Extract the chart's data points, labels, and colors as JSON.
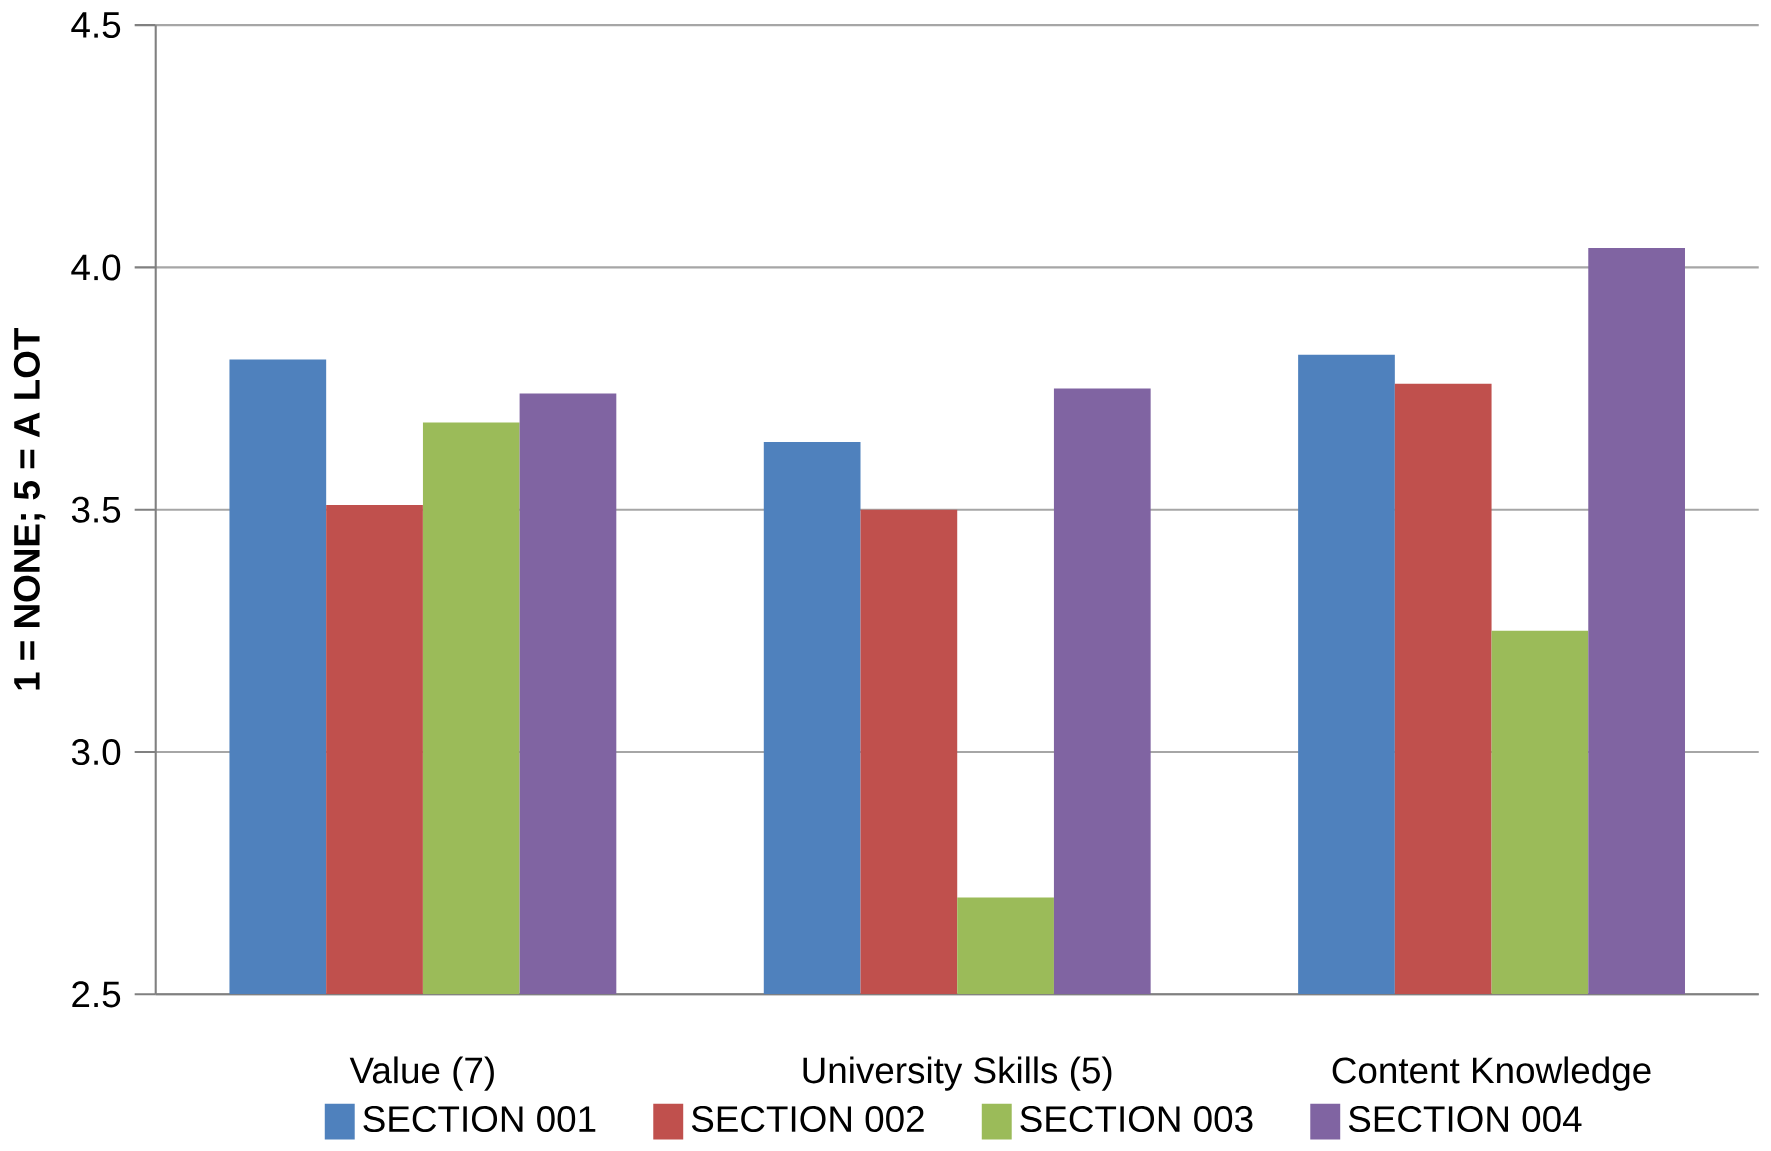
{
  "chart_data": {
    "type": "bar",
    "ylabel": "1 = NONE;  5 = A LOT",
    "categories": [
      "Value (7)",
      "University Skills (5)",
      "Content Knowledge"
    ],
    "series": [
      {
        "name": "SECTION 001",
        "color": "#4f81bd",
        "values": [
          3.81,
          3.64,
          3.82
        ]
      },
      {
        "name": "SECTION 002",
        "color": "#c0504d",
        "values": [
          3.51,
          3.5,
          3.76
        ]
      },
      {
        "name": "SECTION 003",
        "color": "#9bbb59",
        "values": [
          3.68,
          2.7,
          3.25
        ]
      },
      {
        "name": "SECTION 004",
        "color": "#8064a2",
        "values": [
          3.74,
          3.75,
          4.04
        ]
      }
    ],
    "ylim": [
      2.5,
      4.5
    ],
    "yticks": [
      {
        "value": 2.5,
        "label": "2.5"
      },
      {
        "value": 3.0,
        "label": "3.0"
      },
      {
        "value": 3.5,
        "label": "3.5"
      },
      {
        "value": 4.0,
        "label": "4.0"
      },
      {
        "value": 4.5,
        "label": "4.5"
      }
    ],
    "grid": "y",
    "legend": "bottom"
  }
}
